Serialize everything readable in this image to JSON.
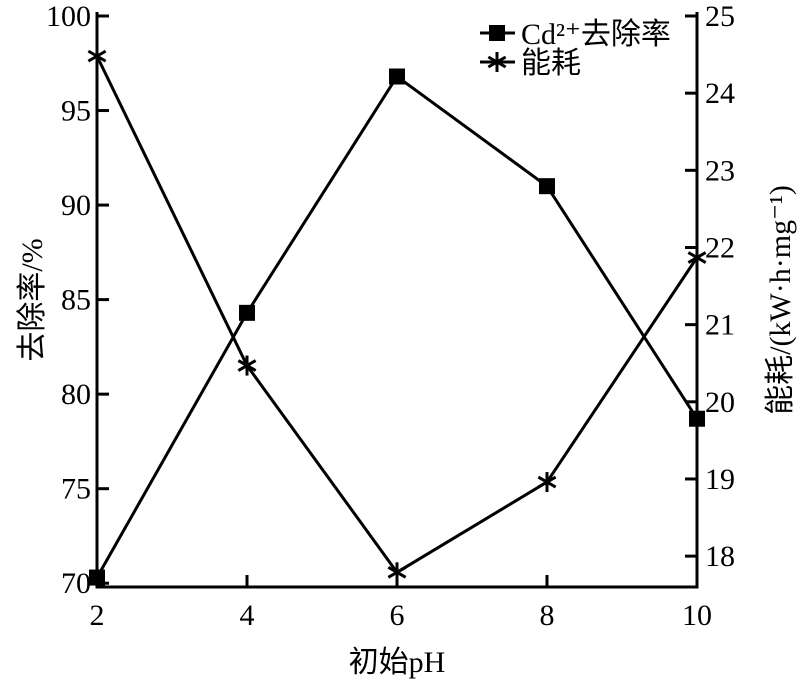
{
  "chart_data": {
    "type": "line",
    "xlabel": "初始pH",
    "ylabel_left": "去除率/%",
    "ylabel_right": "能耗/(kW·h·mg⁻¹)",
    "x": [
      2,
      4,
      6,
      8,
      10
    ],
    "x_ticks": [
      "2",
      "4",
      "6",
      "8",
      "10"
    ],
    "xlim": [
      2,
      10
    ],
    "ylim_left": [
      69.8,
      100
    ],
    "y_ticks_left": [
      70,
      75,
      80,
      85,
      90,
      95,
      100
    ],
    "ylim_right": [
      17.6,
      25
    ],
    "y_ticks_right": [
      18,
      19,
      20,
      21,
      22,
      23,
      24,
      25
    ],
    "grid": false,
    "legend_placement": "top-right",
    "series": [
      {
        "name": "Cd²⁺去除率",
        "axis": "left",
        "marker": "square",
        "color": "#000000",
        "values": [
          70.3,
          84.3,
          96.8,
          91.0,
          78.7
        ]
      },
      {
        "name": "能耗",
        "axis": "right",
        "marker": "asterisk",
        "color": "#000000",
        "values": [
          24.48,
          20.47,
          17.79,
          18.96,
          21.87
        ]
      }
    ]
  }
}
